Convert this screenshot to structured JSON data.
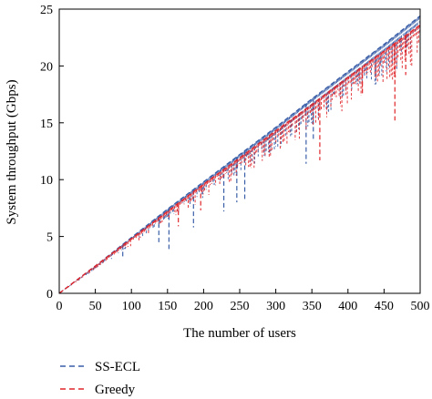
{
  "chart_data": {
    "type": "line",
    "title": "",
    "xlabel": "The number of users",
    "ylabel": "System throughput (Gbps)",
    "xlim": [
      0,
      500
    ],
    "ylim": [
      0,
      25
    ],
    "xticks": [
      0,
      50,
      100,
      150,
      200,
      250,
      300,
      350,
      400,
      450,
      500
    ],
    "yticks": [
      0,
      5,
      10,
      15,
      20,
      25
    ],
    "grid": false,
    "legend_position": "bottom-left, below plot",
    "series": [
      {
        "name": "SS-ECL",
        "color": "#3a5fa8",
        "style": "dashed",
        "x": [
          0,
          50,
          100,
          150,
          200,
          250,
          300,
          350,
          400,
          450,
          500
        ],
        "y": [
          0,
          2.4,
          4.9,
          7.4,
          9.8,
          12.2,
          14.6,
          17.1,
          19.5,
          21.9,
          24.4
        ],
        "dips": [
          [
            88,
            3.1
          ],
          [
            138,
            4.5
          ],
          [
            152,
            3.9
          ],
          [
            186,
            5.8
          ],
          [
            228,
            7.2
          ],
          [
            246,
            8.0
          ],
          [
            257,
            8.3
          ],
          [
            342,
            11.4
          ],
          [
            352,
            13.5
          ]
        ]
      },
      {
        "name": "Greedy",
        "color": "#e0262b",
        "style": "dashed",
        "x": [
          0,
          50,
          100,
          150,
          200,
          250,
          300,
          350,
          400,
          450,
          500
        ],
        "y": [
          0,
          2.4,
          4.8,
          7.2,
          9.6,
          11.9,
          14.3,
          16.6,
          19.0,
          21.3,
          23.6
        ],
        "dips": [
          [
            165,
            5.9
          ],
          [
            196,
            7.3
          ],
          [
            361,
            11.7
          ],
          [
            465,
            15.2
          ],
          [
            420,
            17.6
          ],
          [
            480,
            19.2
          ]
        ]
      }
    ]
  }
}
